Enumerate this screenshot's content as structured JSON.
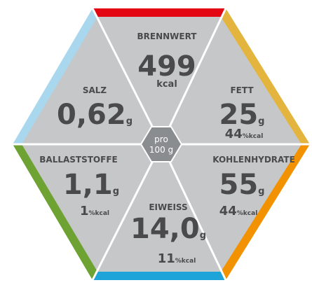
{
  "center": {
    "line1": "pro",
    "line2": "100 g"
  },
  "segments": [
    {
      "label": "BRENNWERT",
      "value": "499",
      "unit": "kcal"
    },
    {
      "label": "FETT",
      "value": "25",
      "unit": "g",
      "percent": "44",
      "percent_unit": "%kcal"
    },
    {
      "label": "KOHLENHYDRATE",
      "value": "55",
      "unit": "g",
      "percent": "44",
      "percent_unit": "%kcal"
    },
    {
      "label": "EIWEISS",
      "value": "14,0",
      "unit": "g",
      "percent": "11",
      "percent_unit": "%kcal"
    },
    {
      "label": "BALLASTSTOFFE",
      "value": "1,1",
      "unit": "g",
      "percent": "1",
      "percent_unit": "%kcal"
    },
    {
      "label": "SALZ",
      "value": "0,62",
      "unit": "g"
    }
  ]
}
